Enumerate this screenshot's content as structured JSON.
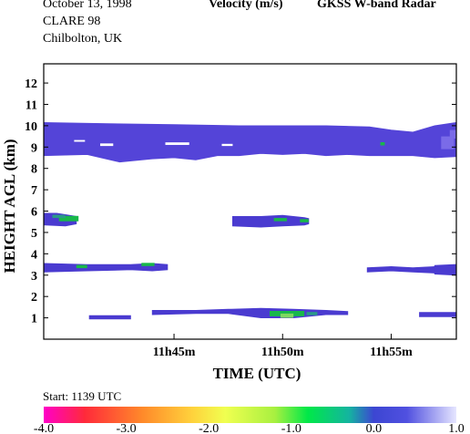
{
  "header": {
    "date": "October  13, 1998",
    "campaign": "CLARE 98",
    "location": "Chilbolton, UK",
    "quantity": "Velocity (m/s)",
    "instrument": "GKSS  W-band Radar"
  },
  "footer": {
    "start_label": "Start: 1139 UTC"
  },
  "colors": {
    "main": "#5444d8",
    "main_dark": "#4a3bd0",
    "light": "#7a6be8",
    "green": "#18b84a",
    "teal": "#2a9a88",
    "lightgreen": "#7ed860"
  },
  "chart_data": {
    "type": "heatmap",
    "title": "Velocity (m/s)",
    "xlabel": "TIME (UTC)",
    "ylabel": "HEIGHT AGL (km)",
    "x_range_minutes": [
      39,
      58
    ],
    "xlim": [
      "11:39",
      "11:58"
    ],
    "ylim": [
      0,
      12.9
    ],
    "x_ticks": [
      {
        "t": 45,
        "label": "11h45m"
      },
      {
        "t": 50,
        "label": "11h50m"
      },
      {
        "t": 55,
        "label": "11h55m"
      }
    ],
    "y_ticks": [
      1,
      2,
      3,
      4,
      5,
      6,
      7,
      8,
      9,
      10,
      11,
      12
    ],
    "colorbar": {
      "min": -4.0,
      "max": 1.0,
      "ticks": [
        {
          "v": -4.0,
          "label": "-4.0"
        },
        {
          "v": -3.0,
          "label": "-3.0"
        },
        {
          "v": -2.0,
          "label": "-2.0"
        },
        {
          "v": -1.0,
          "label": "-1.0"
        },
        {
          "v": 0.0,
          "label": "0.0"
        },
        {
          "v": 1.0,
          "label": "1.0"
        }
      ],
      "stops": [
        {
          "v": -4.0,
          "color": "#ff00c8"
        },
        {
          "v": -3.5,
          "color": "#ff2a3a"
        },
        {
          "v": -2.8,
          "color": "#ff8a2a"
        },
        {
          "v": -2.2,
          "color": "#ffd23c"
        },
        {
          "v": -1.8,
          "color": "#f0ff50"
        },
        {
          "v": -1.2,
          "color": "#a8f040"
        },
        {
          "v": -0.8,
          "color": "#00e848"
        },
        {
          "v": -0.3,
          "color": "#14b4a0"
        },
        {
          "v": 0.0,
          "color": "#3c46d2"
        },
        {
          "v": 0.4,
          "color": "#5050e0"
        },
        {
          "v": 1.0,
          "color": "#e6e6ff"
        }
      ]
    },
    "layers": [
      {
        "name": "upper cloud",
        "top": [
          [
            39,
            10.15
          ],
          [
            42,
            10.1
          ],
          [
            45,
            10.05
          ],
          [
            48,
            10.0
          ],
          [
            50,
            10.0
          ],
          [
            52,
            10.0
          ],
          [
            54,
            9.95
          ],
          [
            55,
            9.8
          ],
          [
            56,
            9.7
          ],
          [
            57,
            10.0
          ],
          [
            58,
            10.15
          ]
        ],
        "bottom": [
          [
            39,
            8.6
          ],
          [
            41,
            8.65
          ],
          [
            42.5,
            8.3
          ],
          [
            44,
            8.45
          ],
          [
            45,
            8.5
          ],
          [
            46,
            8.4
          ],
          [
            47,
            8.6
          ],
          [
            48,
            8.6
          ],
          [
            49,
            8.7
          ],
          [
            50,
            8.65
          ],
          [
            51,
            8.7
          ],
          [
            52,
            8.6
          ],
          [
            53,
            8.65
          ],
          [
            54,
            8.6
          ],
          [
            55,
            8.6
          ],
          [
            56,
            8.6
          ],
          [
            57,
            8.5
          ],
          [
            58,
            8.55
          ]
        ]
      },
      {
        "name": "layer 5.5 km a",
        "top": [
          [
            39,
            5.9
          ],
          [
            39.6,
            5.9
          ],
          [
            40.5,
            5.75
          ]
        ],
        "bottom": [
          [
            39,
            5.35
          ],
          [
            40,
            5.3
          ],
          [
            40.5,
            5.4
          ]
        ]
      },
      {
        "name": "layer 5.5 km b",
        "top": [
          [
            47.7,
            5.75
          ],
          [
            49,
            5.75
          ],
          [
            50,
            5.8
          ],
          [
            51,
            5.7
          ],
          [
            51.2,
            5.65
          ]
        ],
        "bottom": [
          [
            47.7,
            5.3
          ],
          [
            49,
            5.25
          ],
          [
            50,
            5.3
          ],
          [
            51,
            5.35
          ],
          [
            51.2,
            5.4
          ]
        ]
      },
      {
        "name": "layer 3.3 km a",
        "top": [
          [
            39,
            3.55
          ],
          [
            41,
            3.5
          ],
          [
            43,
            3.5
          ],
          [
            44,
            3.55
          ],
          [
            44.7,
            3.5
          ]
        ],
        "bottom": [
          [
            39,
            3.15
          ],
          [
            41,
            3.2
          ],
          [
            43,
            3.25
          ],
          [
            44,
            3.2
          ],
          [
            44.7,
            3.25
          ]
        ]
      },
      {
        "name": "layer 3.3 km b",
        "top": [
          [
            57,
            3.45
          ],
          [
            58,
            3.5
          ]
        ],
        "bottom": [
          [
            57,
            3.05
          ],
          [
            58,
            3.0
          ]
        ]
      },
      {
        "name": "layer 3.3 km c",
        "top": [
          [
            53.9,
            3.35
          ],
          [
            55,
            3.4
          ],
          [
            56,
            3.35
          ],
          [
            57,
            3.4
          ]
        ],
        "bottom": [
          [
            53.9,
            3.15
          ],
          [
            55,
            3.2
          ],
          [
            56,
            3.15
          ],
          [
            57,
            3.1
          ]
        ]
      },
      {
        "name": "low layer 1 km a",
        "top": [
          [
            44,
            1.35
          ],
          [
            46,
            1.35
          ],
          [
            47.5,
            1.4
          ],
          [
            49,
            1.45
          ],
          [
            50.5,
            1.4
          ],
          [
            52,
            1.35
          ],
          [
            53,
            1.3
          ]
        ],
        "bottom": [
          [
            44,
            1.15
          ],
          [
            46,
            1.2
          ],
          [
            47.5,
            1.2
          ],
          [
            49,
            1.0
          ],
          [
            50.5,
            1.0
          ],
          [
            52,
            1.15
          ],
          [
            53,
            1.15
          ]
        ]
      },
      {
        "name": "low layer 1 km b",
        "top": [
          [
            41.1,
            1.1
          ],
          [
            43,
            1.1
          ]
        ],
        "bottom": [
          [
            41.1,
            0.95
          ],
          [
            43,
            0.95
          ]
        ]
      },
      {
        "name": "low layer 1 km c",
        "top": [
          [
            56.3,
            1.25
          ],
          [
            58,
            1.25
          ]
        ],
        "bottom": [
          [
            56.3,
            1.05
          ],
          [
            58,
            1.05
          ]
        ]
      }
    ],
    "patches": [
      {
        "t": 39.7,
        "h": 5.65,
        "dt": 0.9,
        "dh": 0.25,
        "color": "green"
      },
      {
        "t": 39.4,
        "h": 5.75,
        "dt": 0.6,
        "dh": 0.15,
        "color": "teal"
      },
      {
        "t": 49.6,
        "h": 5.6,
        "dt": 0.6,
        "dh": 0.15,
        "color": "green"
      },
      {
        "t": 50.8,
        "h": 5.55,
        "dt": 0.4,
        "dh": 0.15,
        "color": "green"
      },
      {
        "t": 40.5,
        "h": 3.4,
        "dt": 0.5,
        "dh": 0.15,
        "color": "green"
      },
      {
        "t": 43.5,
        "h": 3.5,
        "dt": 0.6,
        "dh": 0.15,
        "color": "green"
      },
      {
        "t": 49.4,
        "h": 1.2,
        "dt": 1.6,
        "dh": 0.25,
        "color": "green"
      },
      {
        "t": 49.9,
        "h": 1.1,
        "dt": 0.6,
        "dh": 0.2,
        "color": "lightgreen"
      },
      {
        "t": 51.1,
        "h": 1.2,
        "dt": 0.5,
        "dh": 0.15,
        "color": "teal"
      },
      {
        "t": 54.5,
        "h": 9.15,
        "dt": 0.2,
        "dh": 0.15,
        "color": "green"
      },
      {
        "t": 57.3,
        "h": 9.2,
        "dt": 0.6,
        "dh": 0.6,
        "color": "light"
      },
      {
        "t": 57.7,
        "h": 9.6,
        "dt": 0.3,
        "dh": 0.4,
        "color": "light"
      }
    ]
  }
}
